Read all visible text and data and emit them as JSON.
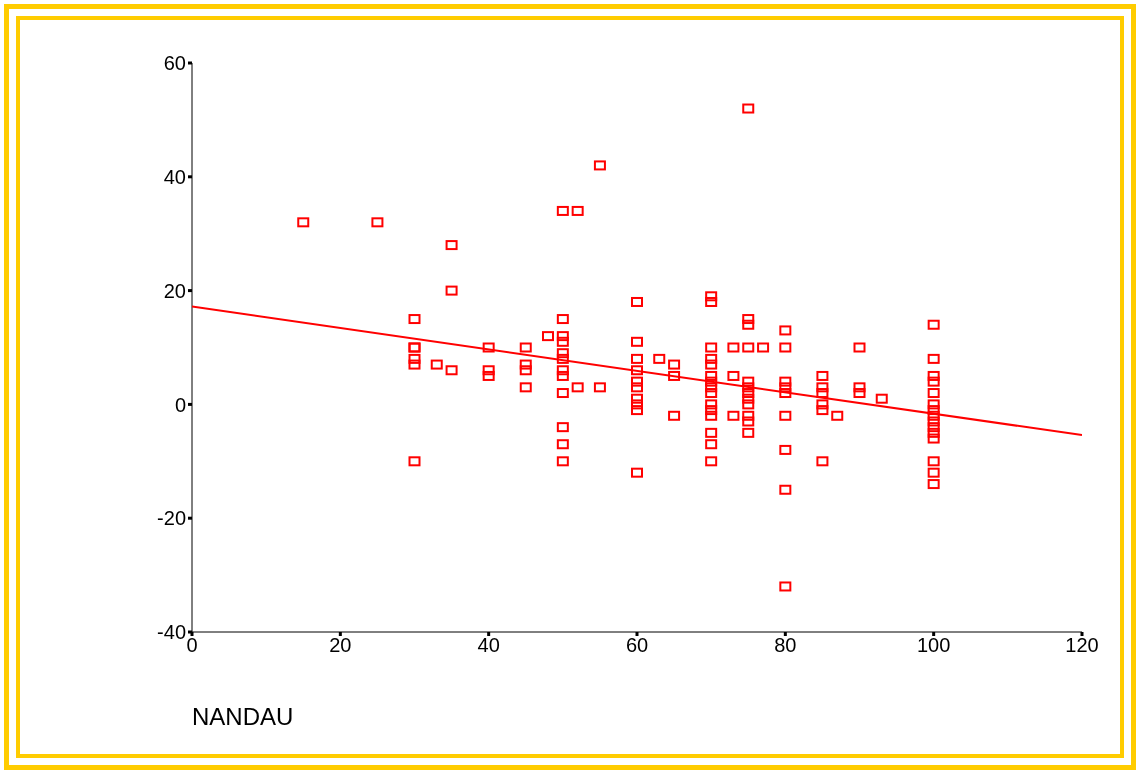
{
  "chart_data": {
    "type": "scatter",
    "xlabel": "NANDAU",
    "xlim": [
      0,
      120
    ],
    "xticks": [
      0,
      20,
      40,
      60,
      80,
      100,
      120
    ],
    "ylim": [
      -40,
      60
    ],
    "yticks": [
      -40,
      -20,
      0,
      20,
      40,
      60
    ],
    "grid": false,
    "legend": false,
    "series": [
      {
        "marker": "square",
        "color": "#ff0000",
        "x": [
          15,
          25,
          30,
          30,
          30,
          30,
          30,
          30,
          33,
          35,
          35,
          35,
          40,
          40,
          40,
          45,
          45,
          45,
          45,
          48,
          50,
          50,
          50,
          50,
          50,
          50,
          50,
          50,
          50,
          50,
          50,
          50,
          52,
          52,
          55,
          55,
          60,
          60,
          60,
          60,
          60,
          60,
          60,
          60,
          60,
          60,
          63,
          65,
          65,
          65,
          70,
          70,
          70,
          70,
          70,
          70,
          70,
          70,
          70,
          70,
          70,
          70,
          70,
          70,
          70,
          73,
          73,
          73,
          75,
          75,
          75,
          75,
          75,
          75,
          75,
          75,
          75,
          75,
          75,
          75,
          77,
          80,
          80,
          80,
          80,
          80,
          80,
          80,
          80,
          80,
          85,
          85,
          85,
          85,
          85,
          85,
          87,
          90,
          90,
          90,
          93,
          100,
          100,
          100,
          100,
          100,
          100,
          100,
          100,
          100,
          100,
          100,
          100,
          100,
          100,
          100
        ],
        "values": [
          32,
          32,
          15,
          10,
          10,
          8,
          7,
          -10,
          7,
          28,
          20,
          6,
          10,
          6,
          5,
          10,
          7,
          6,
          3,
          12,
          34,
          15,
          12,
          11,
          9,
          8,
          6,
          5,
          2,
          -4,
          -7,
          -10,
          34,
          3,
          42,
          3,
          18,
          11,
          8,
          6,
          4,
          3,
          1,
          0,
          -1,
          -12,
          8,
          7,
          5,
          -2,
          19,
          18,
          10,
          8,
          7,
          5,
          4,
          3,
          2,
          0,
          -1,
          -2,
          -5,
          -7,
          -10,
          10,
          5,
          -2,
          52,
          15,
          14,
          10,
          4,
          3,
          2,
          1,
          0,
          -2,
          -3,
          -5,
          10,
          13,
          10,
          4,
          3,
          2,
          -2,
          -8,
          -15,
          -32,
          5,
          3,
          2,
          0,
          -1,
          -10,
          -2,
          10,
          3,
          2,
          1,
          14,
          8,
          5,
          4,
          2,
          0,
          -1,
          -2,
          -3,
          -4,
          -5,
          -6,
          -10,
          -12,
          -14
        ]
      },
      {
        "type": "line",
        "color": "#ff0000",
        "x": [
          0,
          120
        ],
        "values": [
          17.2,
          -5.4
        ]
      }
    ]
  }
}
